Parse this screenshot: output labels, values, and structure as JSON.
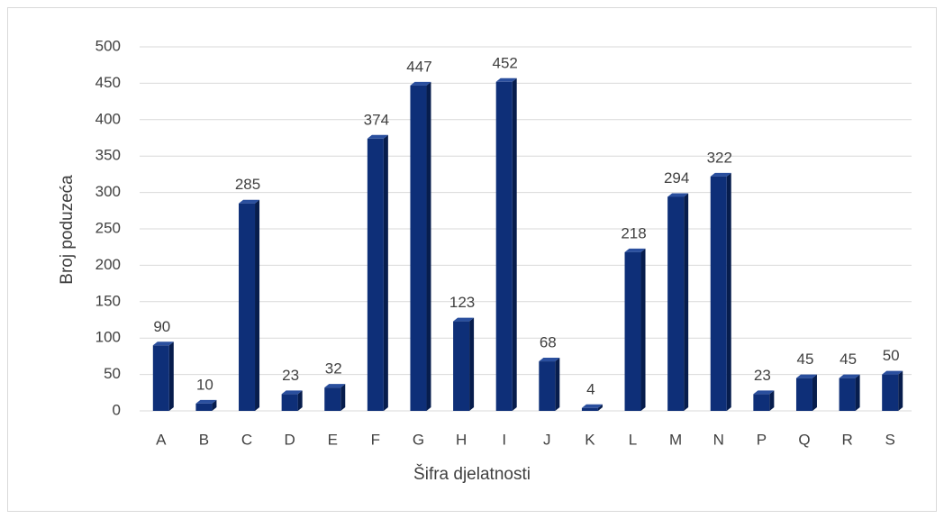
{
  "chart_data": {
    "type": "bar",
    "x_label": "Šifra djelatnosti",
    "y_label": "Broj poduzeća",
    "categories": [
      "A",
      "B",
      "C",
      "D",
      "E",
      "F",
      "G",
      "H",
      "I",
      "J",
      "K",
      "L",
      "M",
      "N",
      "P",
      "Q",
      "R",
      "S"
    ],
    "values": [
      90,
      10,
      285,
      23,
      32,
      374,
      447,
      123,
      452,
      68,
      4,
      218,
      294,
      322,
      23,
      45,
      45,
      50
    ],
    "color": "#0e2f78",
    "ylim": [
      0,
      500
    ],
    "yticks": [
      0,
      50,
      100,
      150,
      200,
      250,
      300,
      350,
      400,
      450,
      500
    ],
    "grid": true
  }
}
